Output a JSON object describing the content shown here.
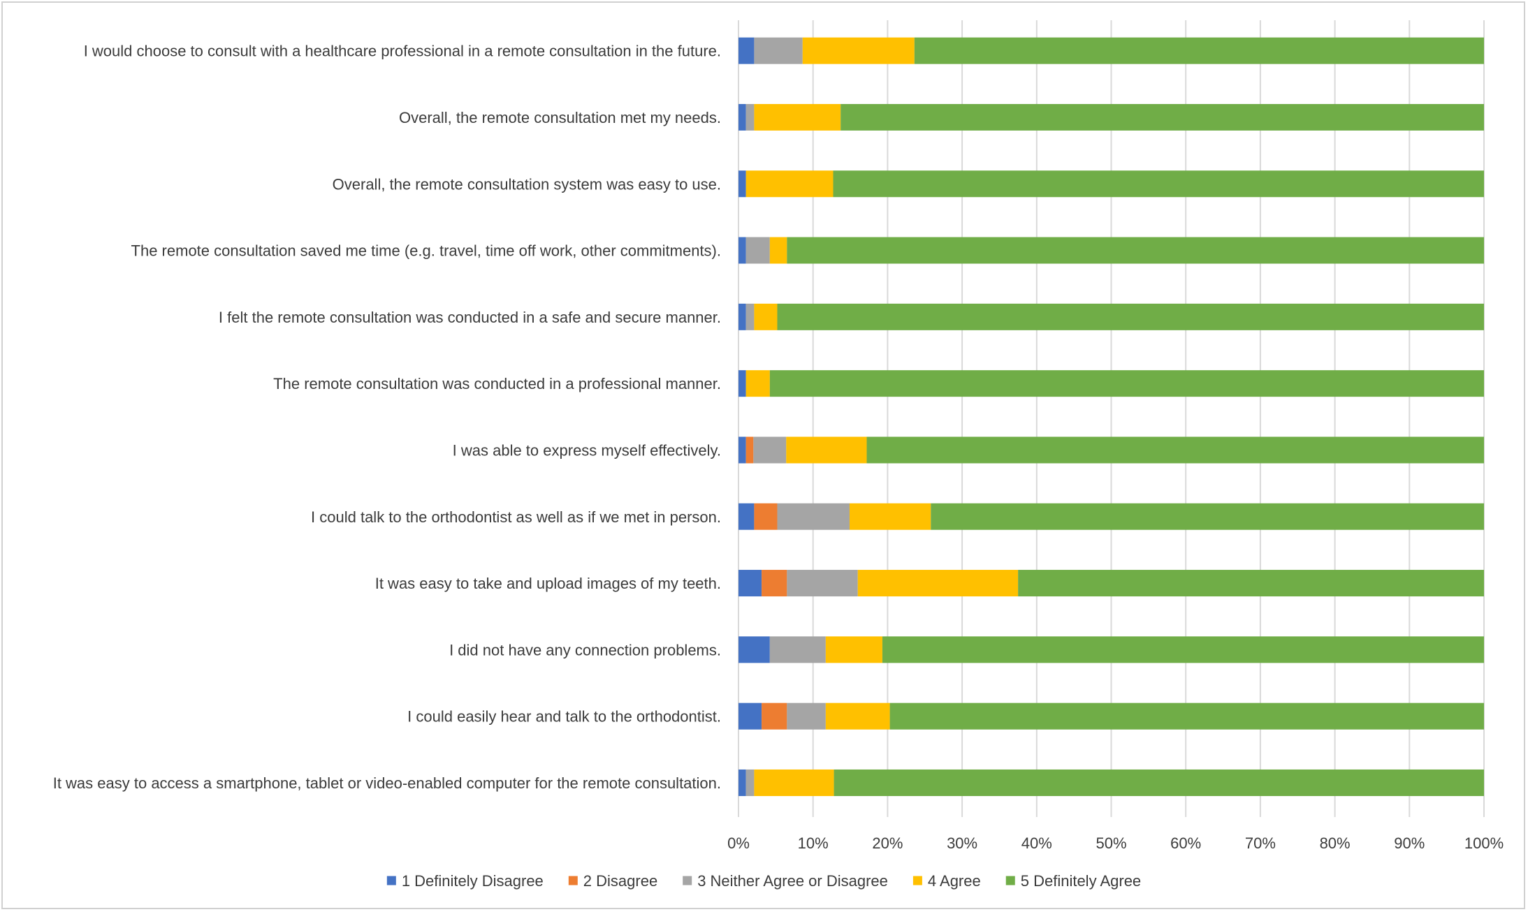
{
  "chart_data": {
    "type": "bar",
    "orientation": "horizontal",
    "stacked": "percent",
    "categories": [
      "I would choose to consult with a healthcare professional in a remote consultation in the future.",
      "Overall, the remote consultation met my needs.",
      "Overall, the remote consultation system was easy to use.",
      "The remote consultation saved me time (e.g. travel, time off work, other commitments).",
      "I felt the remote consultation was conducted in a safe and secure manner.",
      "The remote consultation was conducted in a professional manner.",
      "I was able to express myself effectively.",
      "I could talk to the orthodontist as well as if we met in person.",
      "It was easy to take and upload images of my teeth.",
      "I did not have any connection problems.",
      "I could easily hear and talk to the orthodontist.",
      "It was easy to access a smartphone, tablet or video-enabled computer for the remote consultation."
    ],
    "series": [
      {
        "name": "1 Definitely Disagree",
        "color": "#4472c4",
        "values": [
          2.1,
          1.0,
          1.0,
          1.0,
          1.0,
          1.0,
          1.0,
          2.1,
          3.1,
          4.2,
          3.1,
          1.0
        ]
      },
      {
        "name": "2 Disagree",
        "color": "#ed7d31",
        "values": [
          0,
          0,
          0,
          0,
          0,
          0,
          1.0,
          3.1,
          3.4,
          0,
          3.4,
          0
        ]
      },
      {
        "name": "3 Neither Agree or Disagree",
        "color": "#a5a5a5",
        "values": [
          6.5,
          1.1,
          0,
          3.2,
          1.1,
          0,
          4.4,
          9.7,
          9.5,
          7.5,
          5.2,
          1.1
        ]
      },
      {
        "name": "4 Agree",
        "color": "#ffc000",
        "values": [
          15.0,
          11.6,
          11.7,
          2.3,
          3.1,
          3.2,
          10.8,
          10.9,
          21.5,
          7.6,
          8.6,
          10.7
        ]
      },
      {
        "name": "5 Definitely Agree",
        "color": "#70ad47",
        "values": [
          76.4,
          86.3,
          87.3,
          93.5,
          94.8,
          95.8,
          82.8,
          74.2,
          62.5,
          80.7,
          79.7,
          87.2
        ]
      }
    ],
    "xlim": [
      0,
      100
    ],
    "xticks": [
      "0%",
      "10%",
      "20%",
      "30%",
      "40%",
      "50%",
      "60%",
      "70%",
      "80%",
      "90%",
      "100%"
    ],
    "grid": "vertical",
    "legend_position": "bottom",
    "title": "",
    "xlabel": "",
    "ylabel": ""
  }
}
